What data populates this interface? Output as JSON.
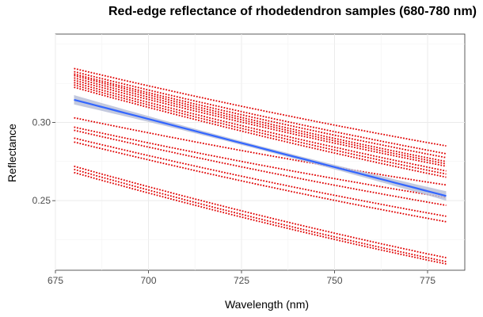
{
  "chart_data": {
    "type": "line",
    "title": "Red-edge reflectance of rhodedendron samples (680-780 nm)",
    "xlabel": "Wavelength (nm)",
    "ylabel": "Reflectance",
    "xlim": [
      675,
      785
    ],
    "ylim": [
      0.2055,
      0.3565
    ],
    "xticks": [
      675,
      700,
      725,
      750,
      775
    ],
    "yticks": [
      0.25,
      0.3
    ],
    "grid": true,
    "sample_color": "#e00000",
    "fit_color": "#3366ff",
    "ribbon_color": "#b8c0d8",
    "samples": [
      {
        "y680": 0.3345,
        "y780": 0.285
      },
      {
        "y680": 0.3325,
        "y780": 0.28
      },
      {
        "y680": 0.331,
        "y780": 0.2775
      },
      {
        "y680": 0.33,
        "y780": 0.275
      },
      {
        "y680": 0.3285,
        "y780": 0.2735
      },
      {
        "y680": 0.327,
        "y780": 0.272
      },
      {
        "y680": 0.3255,
        "y780": 0.269
      },
      {
        "y680": 0.324,
        "y780": 0.267
      },
      {
        "y680": 0.3225,
        "y780": 0.265
      },
      {
        "y680": 0.303,
        "y780": 0.26
      },
      {
        "y680": 0.297,
        "y780": 0.252
      },
      {
        "y680": 0.295,
        "y780": 0.247
      },
      {
        "y680": 0.29,
        "y780": 0.24
      },
      {
        "y680": 0.2875,
        "y780": 0.2365
      },
      {
        "y680": 0.272,
        "y780": 0.2135
      },
      {
        "y680": 0.27,
        "y780": 0.211
      },
      {
        "y680": 0.268,
        "y780": 0.2095
      }
    ],
    "fit": {
      "y680": 0.3145,
      "y780": 0.253,
      "se": 0.0012
    }
  }
}
